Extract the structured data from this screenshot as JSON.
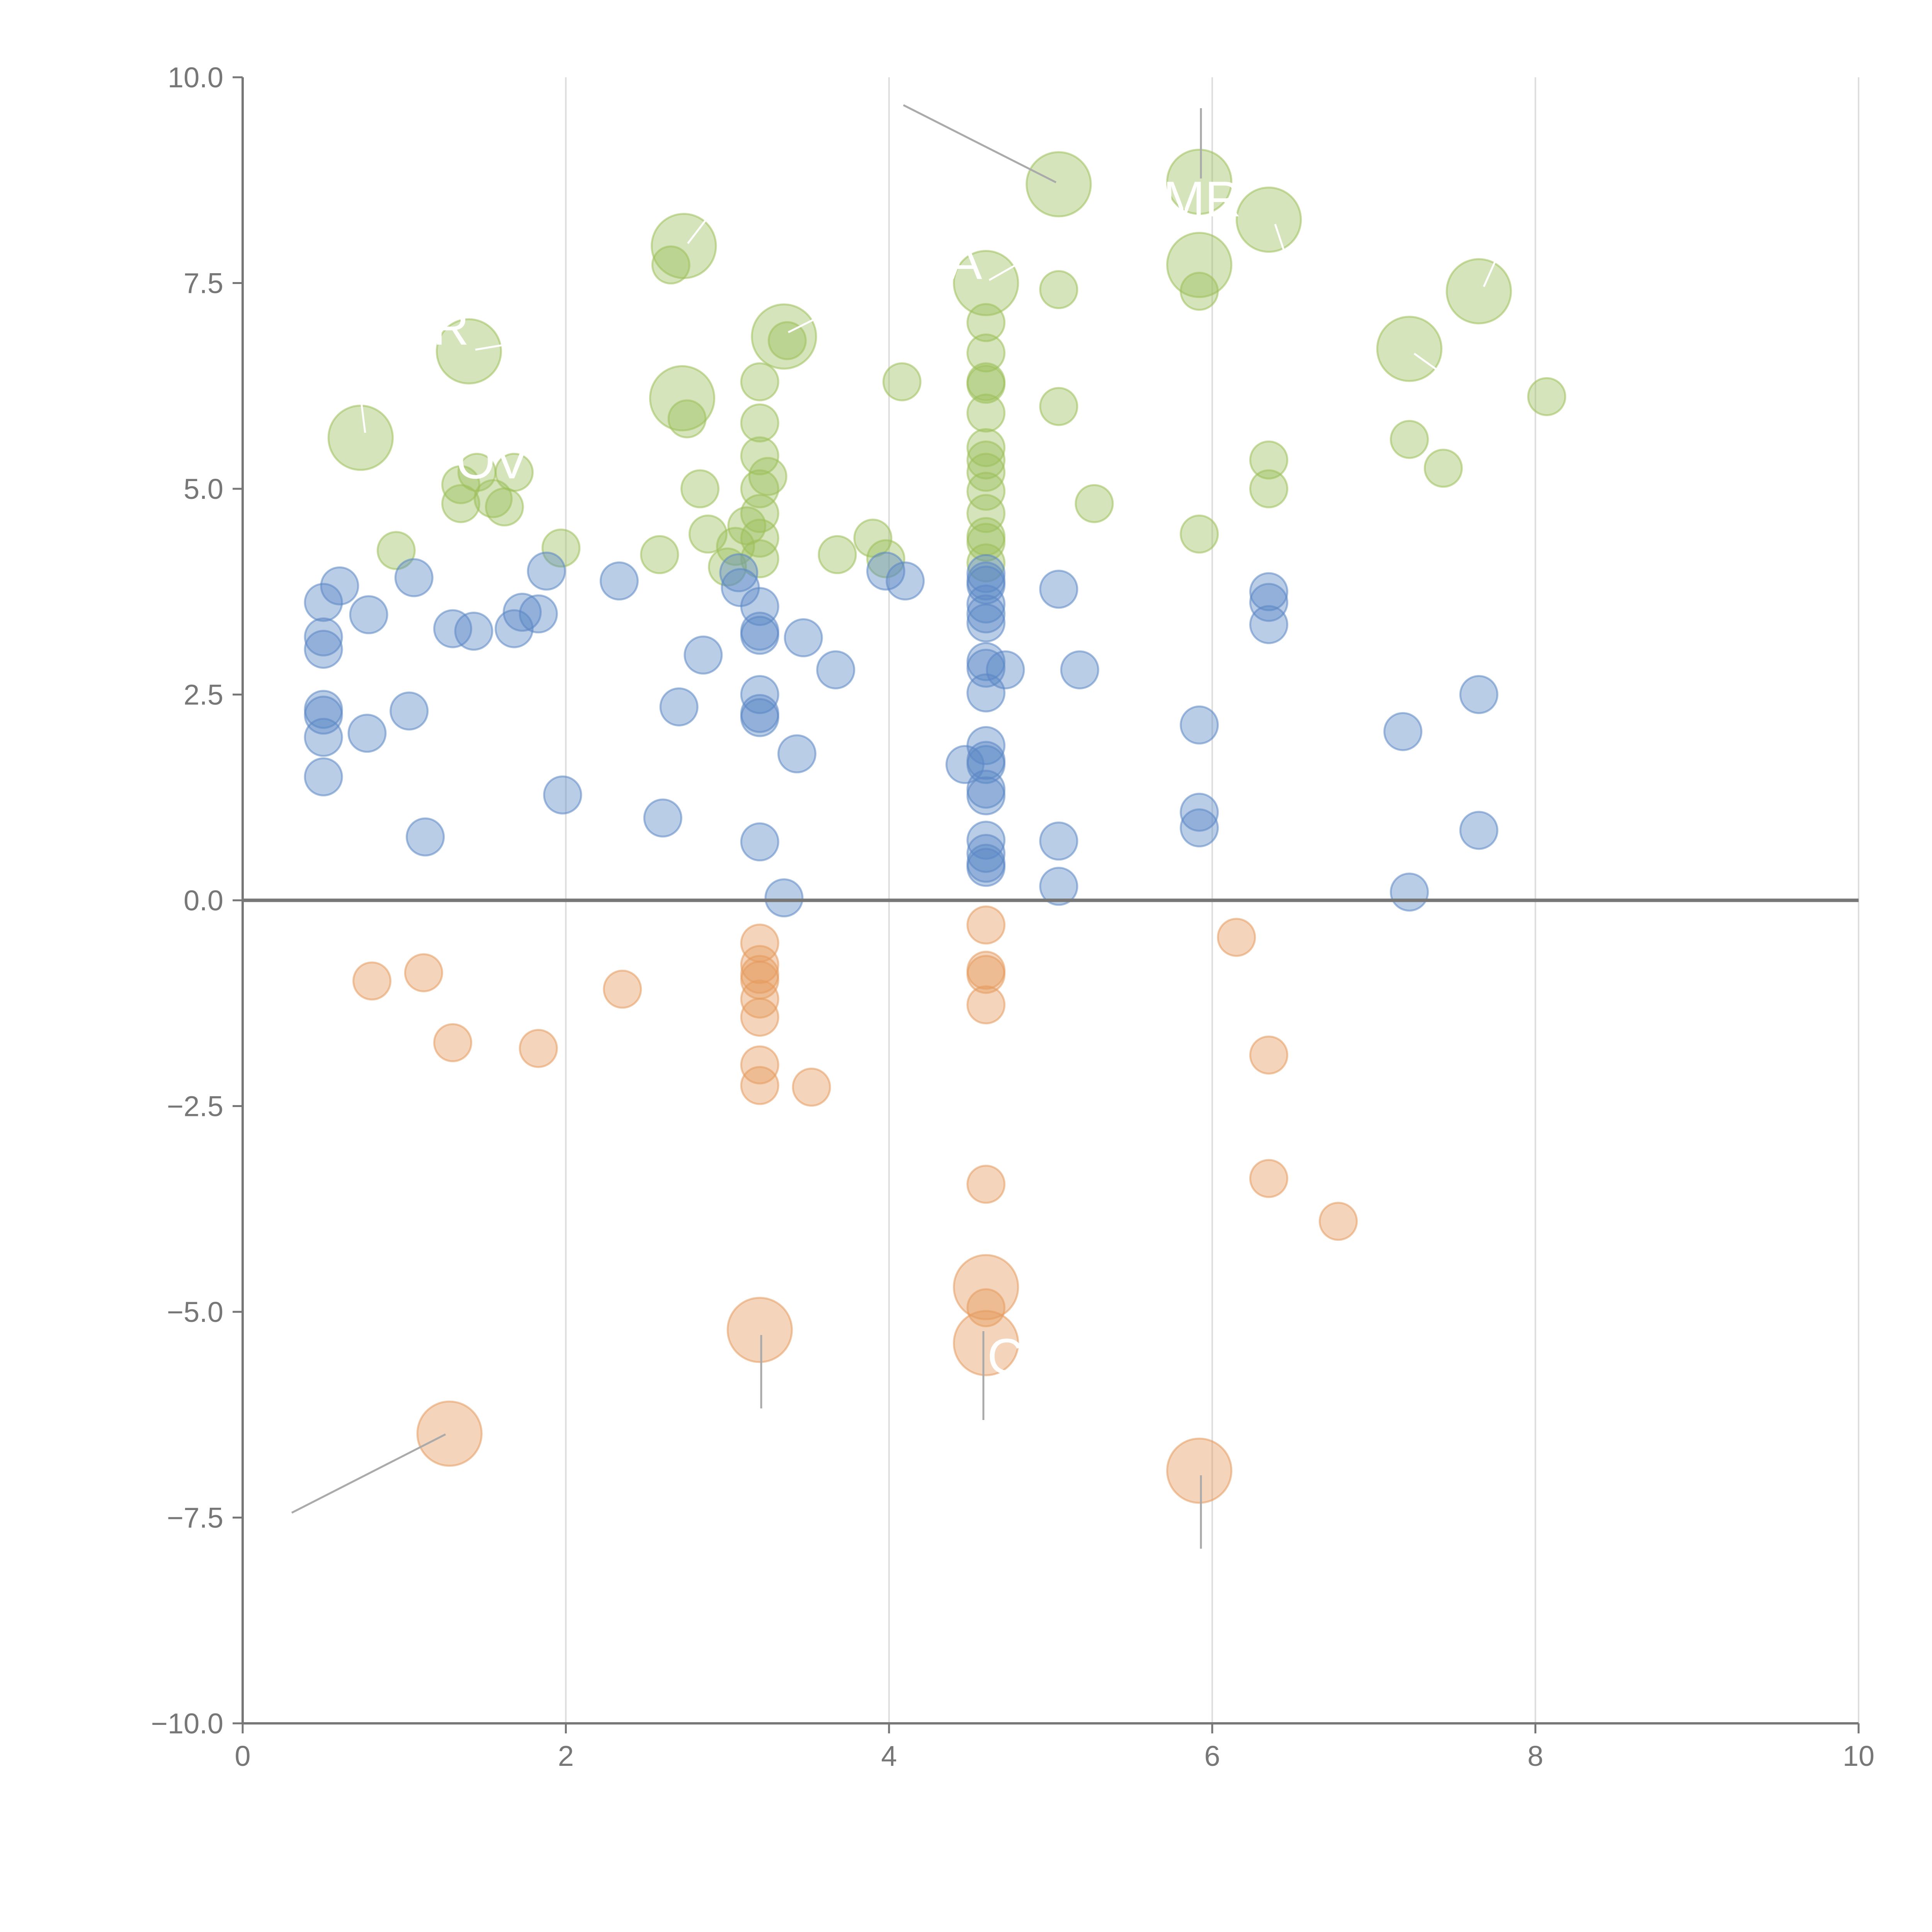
{
  "chart_data": {
    "type": "scatter",
    "title": "",
    "xlabel": "",
    "ylabel": "",
    "xlim": [
      0,
      10
    ],
    "ylim": [
      -10,
      10
    ],
    "x_ticks": [
      0,
      2,
      4,
      6,
      8,
      10
    ],
    "x_tick_labels": [
      "0",
      "2",
      "4",
      "6",
      "8",
      "10"
    ],
    "y_ticks": [
      10,
      7.5,
      5,
      2.5,
      0,
      -2.5,
      -5,
      -7.5,
      -10
    ],
    "y_tick_labels": [
      "10.0",
      "7.5",
      "5.0",
      "2.5",
      "0.0",
      "−2.5",
      "−5.0",
      "−7.5",
      "−10.0"
    ],
    "grid": "vertical lines at x ticks",
    "reference_line": {
      "y": 0
    },
    "annotations": [
      "R",
      "OV",
      "MR",
      "A",
      "C"
    ],
    "series": [
      {
        "name": "green",
        "color": "#9cbf5a",
        "points": [
          [
            0.73,
            5.62,
            3
          ],
          [
            1.4,
            6.67,
            3
          ],
          [
            2.73,
            7.95,
            3
          ],
          [
            2.72,
            6.1,
            3
          ],
          [
            3.35,
            6.85,
            3
          ],
          [
            4.6,
            7.5,
            3
          ],
          [
            5.05,
            8.7,
            3
          ],
          [
            5.92,
            8.73,
            3
          ],
          [
            5.92,
            7.72,
            3
          ],
          [
            6.35,
            8.27,
            3
          ],
          [
            7.22,
            6.7,
            3
          ],
          [
            7.65,
            7.4,
            3
          ],
          [
            0.95,
            4.25,
            1
          ],
          [
            1.35,
            5.05,
            1
          ],
          [
            1.35,
            4.82,
            1
          ],
          [
            1.45,
            5.2,
            1
          ],
          [
            1.55,
            4.88,
            1
          ],
          [
            1.62,
            4.78,
            1
          ],
          [
            1.68,
            5.2,
            1
          ],
          [
            1.97,
            4.28,
            1
          ],
          [
            2.58,
            4.2,
            1
          ],
          [
            2.65,
            7.72,
            1
          ],
          [
            2.75,
            5.85,
            1
          ],
          [
            2.83,
            5.0,
            1
          ],
          [
            2.88,
            4.45,
            1
          ],
          [
            3.0,
            4.05,
            1
          ],
          [
            3.05,
            4.3,
            1
          ],
          [
            3.12,
            4.55,
            1
          ],
          [
            3.2,
            6.3,
            1
          ],
          [
            3.2,
            5.8,
            1
          ],
          [
            3.2,
            5.4,
            1
          ],
          [
            3.2,
            5.0,
            1
          ],
          [
            3.2,
            4.7,
            1
          ],
          [
            3.2,
            4.4,
            1
          ],
          [
            3.2,
            4.15,
            1
          ],
          [
            3.25,
            5.15,
            1
          ],
          [
            3.37,
            6.8,
            1
          ],
          [
            3.68,
            4.2,
            1
          ],
          [
            3.9,
            4.4,
            1
          ],
          [
            3.98,
            4.15,
            1
          ],
          [
            4.08,
            6.3,
            1
          ],
          [
            4.6,
            7.02,
            1
          ],
          [
            4.6,
            6.65,
            1
          ],
          [
            4.6,
            6.3,
            1
          ],
          [
            4.6,
            6.27,
            1
          ],
          [
            4.6,
            5.92,
            1
          ],
          [
            4.6,
            5.5,
            1
          ],
          [
            4.6,
            5.35,
            1
          ],
          [
            4.6,
            5.2,
            1
          ],
          [
            4.6,
            4.97,
            1
          ],
          [
            4.6,
            4.7,
            1
          ],
          [
            4.6,
            4.42,
            1
          ],
          [
            4.6,
            4.35,
            1
          ],
          [
            4.6,
            4.1,
            1
          ],
          [
            5.05,
            7.42,
            1
          ],
          [
            5.05,
            6.0,
            1
          ],
          [
            5.27,
            4.82,
            1
          ],
          [
            5.92,
            7.4,
            1
          ],
          [
            5.92,
            4.45,
            1
          ],
          [
            6.35,
            5.35,
            1
          ],
          [
            6.35,
            5.0,
            1
          ],
          [
            7.22,
            5.6,
            1
          ],
          [
            7.43,
            5.25,
            1
          ],
          [
            8.07,
            6.12,
            1
          ]
        ]
      },
      {
        "name": "blue",
        "color": "#5b87c5",
        "points": [
          [
            0.5,
            3.62,
            1
          ],
          [
            0.5,
            3.2,
            1
          ],
          [
            0.5,
            3.05,
            1
          ],
          [
            0.5,
            2.32,
            1
          ],
          [
            0.5,
            2.25,
            1
          ],
          [
            0.5,
            1.98,
            1
          ],
          [
            0.5,
            1.5,
            1
          ],
          [
            0.6,
            3.82,
            1
          ],
          [
            0.78,
            3.47,
            1
          ],
          [
            0.77,
            2.03,
            1
          ],
          [
            1.03,
            2.3,
            1
          ],
          [
            1.06,
            3.92,
            1
          ],
          [
            1.13,
            0.77,
            1
          ],
          [
            1.3,
            3.3,
            1
          ],
          [
            1.43,
            3.27,
            1
          ],
          [
            1.68,
            3.3,
            1
          ],
          [
            1.73,
            3.5,
            1
          ],
          [
            1.83,
            3.48,
            1
          ],
          [
            1.88,
            4.0,
            1
          ],
          [
            1.98,
            1.28,
            1
          ],
          [
            2.33,
            3.88,
            1
          ],
          [
            2.6,
            1.0,
            1
          ],
          [
            2.7,
            2.35,
            1
          ],
          [
            2.85,
            2.98,
            1
          ],
          [
            3.07,
            3.98,
            1
          ],
          [
            3.08,
            3.8,
            1
          ],
          [
            3.2,
            3.57,
            1
          ],
          [
            3.2,
            3.27,
            1
          ],
          [
            3.2,
            3.22,
            1
          ],
          [
            3.2,
            2.5,
            1
          ],
          [
            3.2,
            2.27,
            1
          ],
          [
            3.2,
            2.22,
            1
          ],
          [
            3.2,
            0.71,
            1
          ],
          [
            3.35,
            0.03,
            1
          ],
          [
            3.43,
            1.78,
            1
          ],
          [
            3.47,
            3.19,
            1
          ],
          [
            3.67,
            2.8,
            1
          ],
          [
            3.98,
            4.0,
            1
          ],
          [
            4.1,
            3.88,
            1
          ],
          [
            4.47,
            1.65,
            1
          ],
          [
            4.6,
            3.97,
            1
          ],
          [
            4.6,
            3.88,
            1
          ],
          [
            4.6,
            3.83,
            1
          ],
          [
            4.6,
            3.6,
            1
          ],
          [
            4.6,
            3.48,
            1
          ],
          [
            4.6,
            3.37,
            1
          ],
          [
            4.6,
            2.9,
            1
          ],
          [
            4.6,
            2.82,
            1
          ],
          [
            4.6,
            2.52,
            1
          ],
          [
            4.6,
            1.88,
            1
          ],
          [
            4.6,
            1.7,
            1
          ],
          [
            4.6,
            1.65,
            1
          ],
          [
            4.6,
            1.35,
            1
          ],
          [
            4.6,
            1.27,
            1
          ],
          [
            4.6,
            0.73,
            1
          ],
          [
            4.6,
            0.57,
            1
          ],
          [
            4.6,
            0.45,
            1
          ],
          [
            4.6,
            0.4,
            1
          ],
          [
            4.72,
            2.8,
            1
          ],
          [
            5.05,
            3.78,
            1
          ],
          [
            5.05,
            0.72,
            1
          ],
          [
            5.05,
            0.17,
            1
          ],
          [
            5.18,
            2.8,
            1
          ],
          [
            5.92,
            2.13,
            1
          ],
          [
            5.92,
            1.07,
            1
          ],
          [
            5.92,
            0.88,
            1
          ],
          [
            6.35,
            3.75,
            1
          ],
          [
            6.35,
            3.62,
            1
          ],
          [
            6.35,
            3.35,
            1
          ],
          [
            7.18,
            2.05,
            1
          ],
          [
            7.22,
            0.1,
            1
          ],
          [
            7.65,
            2.5,
            1
          ],
          [
            7.65,
            0.85,
            1
          ]
        ]
      },
      {
        "name": "orange",
        "color": "#e59a5e",
        "points": [
          [
            0.8,
            -0.98,
            1
          ],
          [
            1.12,
            -0.88,
            1
          ],
          [
            1.3,
            -1.73,
            1
          ],
          [
            1.83,
            -1.8,
            1
          ],
          [
            2.35,
            -1.08,
            1
          ],
          [
            3.2,
            -0.52,
            1
          ],
          [
            3.2,
            -0.78,
            1
          ],
          [
            3.2,
            -0.9,
            1
          ],
          [
            3.2,
            -0.97,
            1
          ],
          [
            3.2,
            -1.2,
            1
          ],
          [
            3.2,
            -1.42,
            1
          ],
          [
            3.2,
            -2.0,
            1
          ],
          [
            3.2,
            -2.25,
            1
          ],
          [
            3.52,
            -2.27,
            1
          ],
          [
            4.6,
            -0.3,
            1
          ],
          [
            4.6,
            -0.85,
            1
          ],
          [
            4.6,
            -0.9,
            1
          ],
          [
            4.6,
            -1.27,
            1
          ],
          [
            4.6,
            -3.45,
            1
          ],
          [
            4.6,
            -4.95,
            1
          ],
          [
            6.15,
            -0.45,
            1
          ],
          [
            6.35,
            -1.88,
            1
          ],
          [
            6.35,
            -3.38,
            1
          ],
          [
            6.78,
            -3.9,
            1
          ],
          [
            1.28,
            -6.48,
            3
          ],
          [
            3.2,
            -5.22,
            3
          ],
          [
            4.6,
            -4.7,
            3
          ],
          [
            4.6,
            -5.38,
            3
          ],
          [
            5.92,
            -6.93,
            3
          ]
        ]
      }
    ]
  }
}
